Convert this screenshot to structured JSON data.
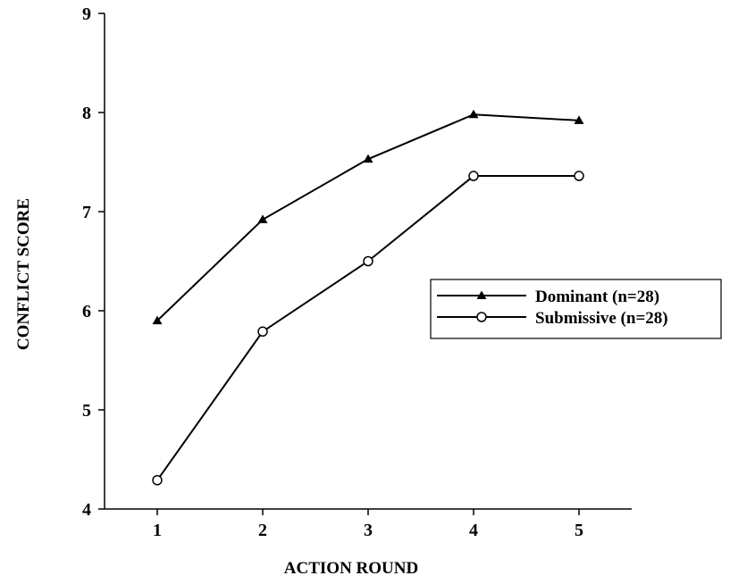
{
  "chart_data": {
    "type": "line",
    "title": "",
    "xlabel": "ACTION ROUND",
    "ylabel": "CONFLICT SCORE",
    "x": [
      1,
      2,
      3,
      4,
      5
    ],
    "x_tick_labels": [
      "1",
      "2",
      "3",
      "4",
      "5"
    ],
    "xlim": [
      0.5,
      5.5
    ],
    "ylim": [
      4,
      9
    ],
    "y_ticks": [
      4,
      5,
      6,
      7,
      8,
      9
    ],
    "y_tick_labels": [
      "4",
      "5",
      "6",
      "7",
      "8",
      "9"
    ],
    "grid": false,
    "legend_position": "right",
    "series": [
      {
        "name": "Dominant (n=28)",
        "marker": "filled-triangle",
        "color": "#000000",
        "values": [
          5.9,
          6.92,
          7.53,
          7.98,
          7.92
        ]
      },
      {
        "name": "Submissive (n=28)",
        "marker": "open-circle",
        "color": "#000000",
        "values": [
          4.29,
          5.79,
          6.5,
          7.36,
          7.36
        ]
      }
    ]
  }
}
